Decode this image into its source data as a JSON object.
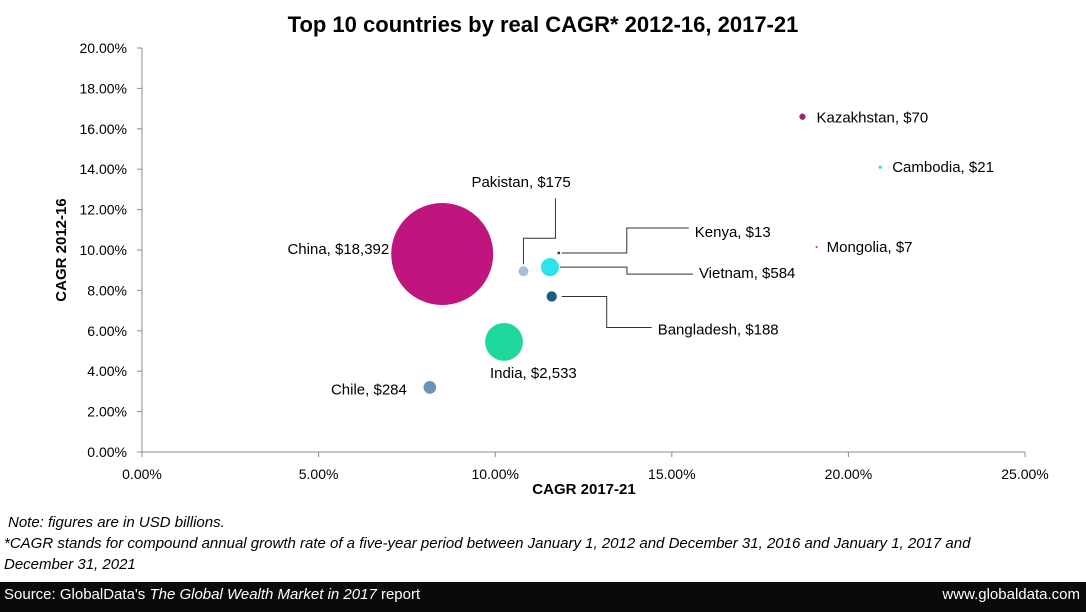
{
  "chart_data": {
    "type": "bubble",
    "title": "Top 10 countries by real CAGR* 2012-16, 2017-21",
    "xlabel": "CAGR 2017-21",
    "ylabel": "CAGR 2012-16",
    "xlim": [
      0,
      25
    ],
    "ylim": [
      0,
      20
    ],
    "x_ticks": [
      "0.00%",
      "5.00%",
      "10.00%",
      "15.00%",
      "20.00%",
      "25.00%"
    ],
    "y_ticks": [
      "0.00%",
      "2.00%",
      "4.00%",
      "6.00%",
      "8.00%",
      "10.00%",
      "12.00%",
      "14.00%",
      "16.00%",
      "18.00%",
      "20.00%"
    ],
    "grid": false,
    "points": [
      {
        "country": "China",
        "label": "China,  $18,392",
        "x": 8.5,
        "y": 9.8,
        "size": 18392,
        "color": "#c0157e"
      },
      {
        "country": "India",
        "label": "India,  $2,533",
        "x": 10.25,
        "y": 5.45,
        "size": 2533,
        "color": "#1ed89e"
      },
      {
        "country": "Vietnam",
        "label": "Vietnam,  $584",
        "x": 11.55,
        "y": 9.15,
        "size": 584,
        "color": "#2ee4ec"
      },
      {
        "country": "Chile",
        "label": "Chile,  $284",
        "x": 8.15,
        "y": 3.2,
        "size": 284,
        "color": "#6b93b7"
      },
      {
        "country": "Bangladesh",
        "label": "Bangladesh,  $188",
        "x": 11.6,
        "y": 7.7,
        "size": 188,
        "color": "#1a5e86"
      },
      {
        "country": "Pakistan",
        "label": "Pakistan,  $175",
        "x": 10.8,
        "y": 8.95,
        "size": 175,
        "color": "#a9bfd6"
      },
      {
        "country": "Kazakhstan",
        "label": "Kazakhstan,  $70",
        "x": 18.7,
        "y": 16.6,
        "size": 70,
        "color": "#8b2a7a"
      },
      {
        "country": "Cambodia",
        "label": "Cambodia,  $21",
        "x": 20.9,
        "y": 14.1,
        "size": 21,
        "color": "#3ee3b8"
      },
      {
        "country": "Kenya",
        "label": "Kenya,  $13",
        "x": 11.8,
        "y": 9.85,
        "size": 13,
        "color": "#333333"
      },
      {
        "country": "Mongolia",
        "label": "Mongolia,  $7",
        "x": 19.1,
        "y": 10.15,
        "size": 7,
        "color": "#d0303a"
      }
    ]
  },
  "notes": {
    "line1": "Note: figures are in USD billions.",
    "line2": "*CAGR stands for compound annual growth rate of a five-year period between January 1, 2012 and December 31, 2016 and January 1, 2017 and",
    "line3": "December 31, 2021"
  },
  "footer": {
    "source_prefix": "Source: GlobalData's ",
    "source_title": "The Global Wealth Market in 2017",
    "source_suffix": " report",
    "website": "www.globaldata.com",
    "background": "#0a0a0a"
  }
}
